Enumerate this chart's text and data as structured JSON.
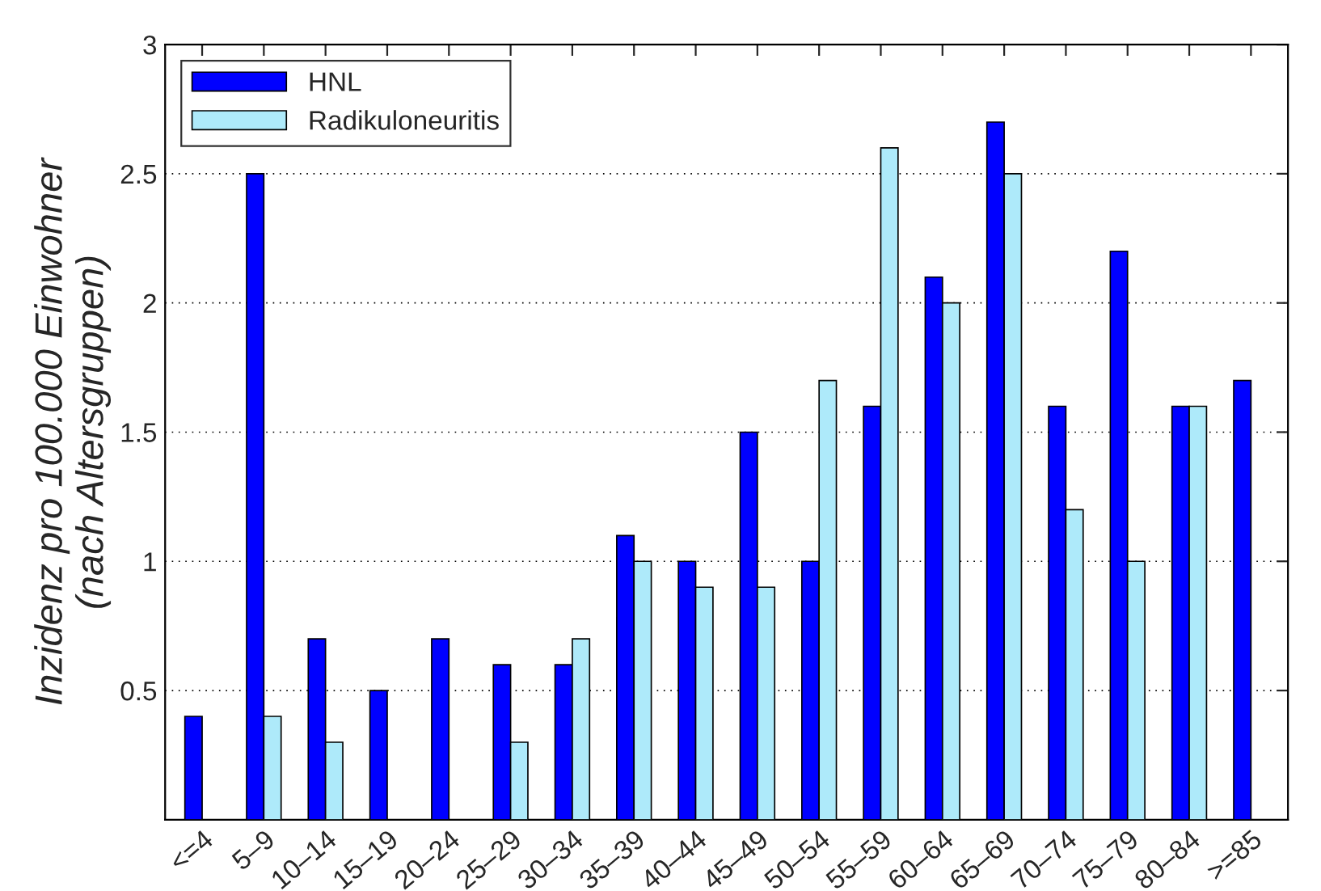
{
  "chart_data": {
    "type": "bar",
    "ylabel": "Inzidenz pro 100.000 Einwohner\n(nach Altersgruppen)",
    "categories": [
      "<=4",
      "5–9",
      "10–14",
      "15–19",
      "20–24",
      "25–29",
      "30–34",
      "35–39",
      "40–44",
      "45–49",
      "50–54",
      "55–59",
      "60–64",
      "65–69",
      "70–74",
      "75–79",
      "80–84",
      ">=85"
    ],
    "series": [
      {
        "name": "HNL",
        "color": "#0000ff",
        "values": [
          0.4,
          2.5,
          0.7,
          0.5,
          0.7,
          0.6,
          0.6,
          1.1,
          1.0,
          1.5,
          1.0,
          1.6,
          2.1,
          2.7,
          1.6,
          2.2,
          1.6,
          1.7
        ]
      },
      {
        "name": "Radikuloneuritis",
        "color": "#aeeafa",
        "values": [
          null,
          0.4,
          0.3,
          null,
          null,
          0.3,
          0.7,
          1.0,
          0.9,
          0.9,
          1.7,
          2.6,
          2.0,
          2.5,
          1.2,
          1.0,
          1.6,
          null
        ]
      }
    ],
    "ylim": [
      0,
      3
    ],
    "yticks": [
      0.5,
      1,
      1.5,
      2,
      2.5,
      3
    ],
    "grid": "y",
    "legend": "top left"
  }
}
